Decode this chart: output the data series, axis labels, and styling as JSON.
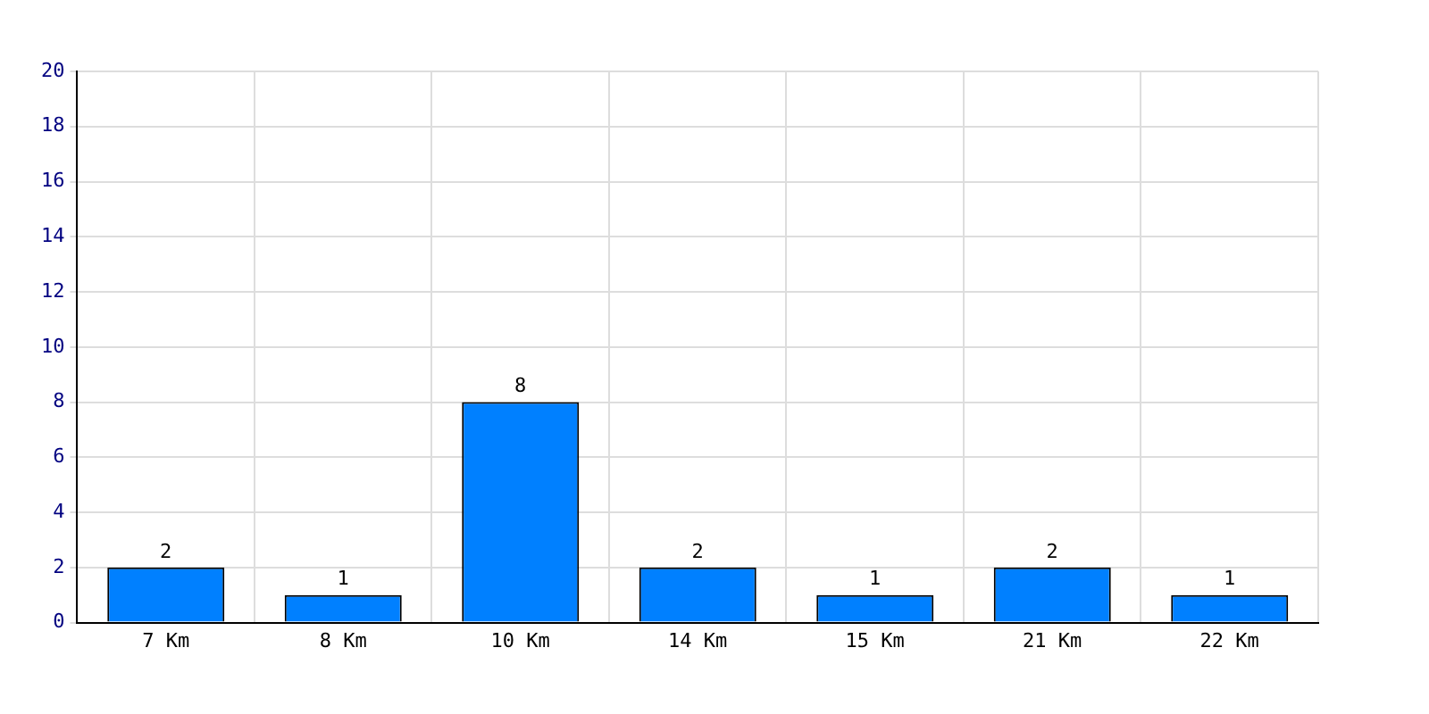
{
  "chart_data": {
    "type": "bar",
    "categories": [
      "7 Km",
      "8 Km",
      "10 Km",
      "14 Km",
      "15 Km",
      "21 Km",
      "22 Km"
    ],
    "values": [
      2,
      1,
      8,
      2,
      1,
      2,
      1
    ],
    "color": "#0080ff",
    "ylim": [
      0,
      20
    ],
    "yticks": [
      0,
      2,
      4,
      6,
      8,
      10,
      12,
      14,
      16,
      18,
      20
    ],
    "grid": true,
    "data_labels": true
  }
}
